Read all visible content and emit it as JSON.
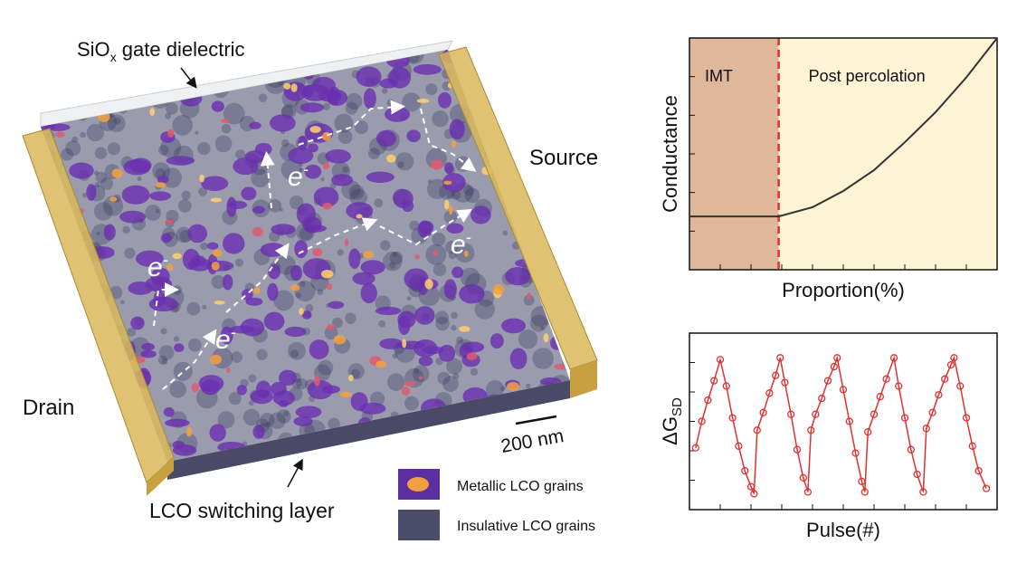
{
  "illustration": {
    "dielectric": "SiO",
    "dielectric_sub": "x",
    "dielectric_rest": " gate dielectric",
    "source": "Source",
    "drain": "Drain",
    "layer": "LCO switching layer",
    "scale": "200 nm",
    "electron": "e",
    "electron_sup": "-",
    "legend": [
      "Metallic LCO grains",
      "Insulative LCO grains"
    ]
  },
  "chart_data": [
    {
      "type": "line",
      "ylabel": "Conductance",
      "xlabel": "Proportion(%)",
      "annotations": [
        "IMT",
        "Post percolation"
      ],
      "threshold": 29,
      "color": "#333333",
      "threshold_color": "#e03030",
      "x": [
        0,
        10,
        20,
        29,
        40,
        50,
        60,
        70,
        80,
        90,
        100
      ],
      "values": [
        23,
        23,
        23,
        23,
        27,
        34,
        43,
        55,
        68,
        83,
        100
      ],
      "xlim": [
        0,
        100
      ],
      "ylim": [
        0,
        100
      ]
    },
    {
      "type": "scatter-line",
      "ylabel": "ΔG",
      "ylabel_sub": "SD",
      "xlabel": "Pulse(#)",
      "color": "#e03030",
      "x": [
        2,
        4,
        6,
        8,
        10,
        12,
        14,
        16,
        18,
        20,
        21,
        22,
        24,
        26,
        28,
        29.5,
        31,
        33,
        35,
        37,
        38.5,
        39.5,
        41,
        43,
        45,
        47,
        48,
        50,
        52,
        54,
        56,
        57,
        58,
        60,
        62,
        64,
        66.5,
        68,
        70,
        72,
        74,
        76,
        77,
        79,
        81,
        83,
        85,
        86,
        88,
        90,
        92,
        94,
        96.5
      ],
      "values": [
        35,
        50,
        62,
        73,
        85,
        70,
        52,
        36,
        22,
        13,
        9,
        45,
        55,
        66,
        76,
        86,
        72,
        54,
        34,
        18,
        10,
        45,
        54,
        63,
        73,
        81,
        86,
        68,
        50,
        32,
        16,
        10,
        44,
        54,
        64,
        74,
        86,
        70,
        52,
        34,
        20,
        10,
        46,
        55,
        65,
        74,
        82,
        86,
        70,
        52,
        36,
        22,
        12
      ],
      "xlim": [
        0,
        100
      ],
      "ylim": [
        0,
        100
      ]
    }
  ]
}
